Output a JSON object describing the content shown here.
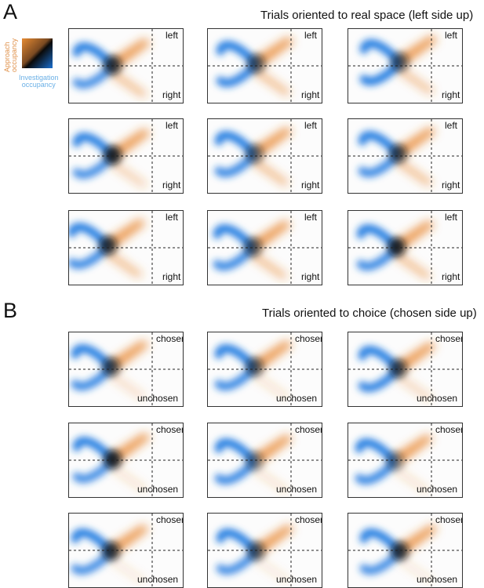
{
  "panel_a": {
    "letter": "A",
    "title": "Trials oriented to real space (left side up)",
    "top_label": "left",
    "bottom_label": "right"
  },
  "panel_b": {
    "letter": "B",
    "title": "Trials oriented to choice (chosen side up)",
    "top_label": "chosen",
    "bottom_label": "unchosen"
  },
  "legend": {
    "approach_line1": "Approach",
    "approach_line2": "occupancy",
    "investigation_line1": "Investigation",
    "investigation_line2": "occupancy"
  },
  "colors": {
    "approach": "#e8822a",
    "investigation": "#1f78e0",
    "overlap": "#0a0a0a"
  }
}
